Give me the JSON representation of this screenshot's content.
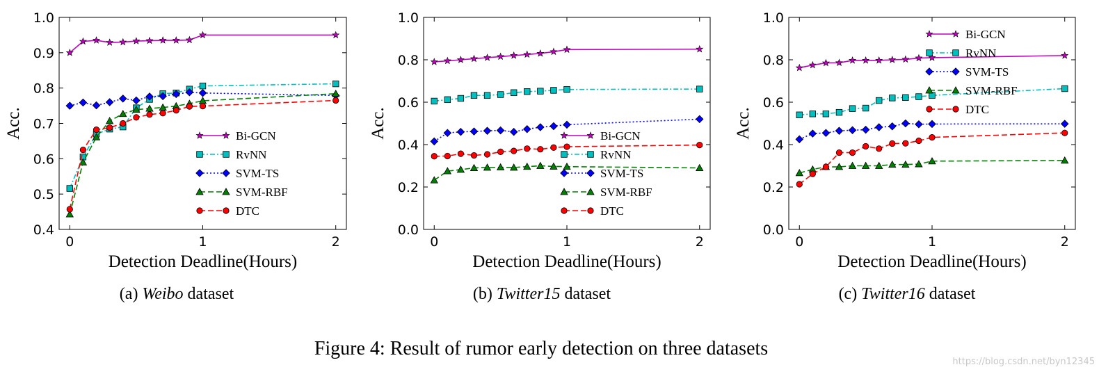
{
  "figure_caption": "Figure 4: Result of rumor early detection on three datasets",
  "watermark": "https://blog.csdn.net/byn12345",
  "series_styles": {
    "Bi-GCN": {
      "color": "#bf00bf",
      "marker": "star",
      "dash": ""
    },
    "RvNN": {
      "color": "#00bfbf",
      "marker": "square",
      "dash": "7,3,2,3"
    },
    "SVM-TS": {
      "color": "#0000ff",
      "marker": "diamond",
      "dash": "2,3"
    },
    "SVM-RBF": {
      "color": "#007f00",
      "marker": "triangle",
      "dash": "8,4"
    },
    "DTC": {
      "color": "#ff0000",
      "marker": "circle",
      "dash": "8,4"
    }
  },
  "chart_data": [
    {
      "type": "line",
      "caption_prefix": "(a)",
      "caption_name": "Weibo",
      "caption_suffix": "dataset",
      "xlabel": "Detection Deadline(Hours)",
      "ylabel": "Acc.",
      "xlim": [
        -0.08,
        2.08
      ],
      "ylim": [
        0.4,
        1.0
      ],
      "xticks": [
        0,
        1,
        2
      ],
      "yticks": [
        0.4,
        0.5,
        0.6,
        0.7,
        0.8,
        0.9,
        1.0
      ],
      "legend": "lower-right",
      "grid": false,
      "x": [
        0,
        0.1,
        0.2,
        0.3,
        0.4,
        0.5,
        0.6,
        0.7,
        0.8,
        0.9,
        1.0,
        2.0
      ],
      "series": [
        {
          "name": "Bi-GCN",
          "values": [
            0.9,
            0.932,
            0.935,
            0.929,
            0.93,
            0.933,
            0.934,
            0.935,
            0.935,
            0.936,
            0.95,
            0.95
          ]
        },
        {
          "name": "RvNN",
          "values": [
            0.516,
            0.605,
            0.67,
            0.684,
            0.69,
            0.744,
            0.768,
            0.784,
            0.786,
            0.797,
            0.806,
            0.812
          ]
        },
        {
          "name": "SVM-TS",
          "values": [
            0.75,
            0.759,
            0.751,
            0.76,
            0.77,
            0.765,
            0.776,
            0.777,
            0.783,
            0.788,
            0.786,
            0.779
          ]
        },
        {
          "name": "SVM-RBF",
          "values": [
            0.443,
            0.59,
            0.661,
            0.707,
            0.727,
            0.739,
            0.742,
            0.745,
            0.749,
            0.756,
            0.764,
            0.784
          ]
        },
        {
          "name": "DTC",
          "values": [
            0.457,
            0.625,
            0.682,
            0.688,
            0.7,
            0.717,
            0.725,
            0.729,
            0.737,
            0.748,
            0.749,
            0.765
          ]
        }
      ]
    },
    {
      "type": "line",
      "caption_prefix": "(b)",
      "caption_name": "Twitter15",
      "caption_suffix": "dataset",
      "xlabel": "Detection Deadline(Hours)",
      "ylabel": "Acc.",
      "xlim": [
        -0.08,
        2.08
      ],
      "ylim": [
        0.0,
        1.0
      ],
      "xticks": [
        0,
        1,
        2
      ],
      "yticks": [
        0.0,
        0.2,
        0.4,
        0.6,
        0.8,
        1.0
      ],
      "legend": "lower-right",
      "grid": false,
      "x": [
        0,
        0.1,
        0.2,
        0.3,
        0.4,
        0.5,
        0.6,
        0.7,
        0.8,
        0.9,
        1.0,
        2.0
      ],
      "series": [
        {
          "name": "Bi-GCN",
          "values": [
            0.79,
            0.795,
            0.8,
            0.805,
            0.81,
            0.815,
            0.82,
            0.825,
            0.83,
            0.838,
            0.848,
            0.85
          ]
        },
        {
          "name": "RvNN",
          "values": [
            0.605,
            0.612,
            0.618,
            0.632,
            0.632,
            0.636,
            0.645,
            0.65,
            0.652,
            0.656,
            0.66,
            0.662
          ]
        },
        {
          "name": "SVM-TS",
          "values": [
            0.415,
            0.455,
            0.46,
            0.462,
            0.465,
            0.467,
            0.46,
            0.473,
            0.482,
            0.487,
            0.494,
            0.52
          ]
        },
        {
          "name": "SVM-RBF",
          "values": [
            0.232,
            0.275,
            0.282,
            0.29,
            0.292,
            0.293,
            0.292,
            0.296,
            0.3,
            0.297,
            0.296,
            0.29
          ]
        },
        {
          "name": "DTC",
          "values": [
            0.345,
            0.346,
            0.357,
            0.349,
            0.354,
            0.366,
            0.37,
            0.381,
            0.378,
            0.386,
            0.39,
            0.398
          ]
        }
      ]
    },
    {
      "type": "line",
      "caption_prefix": "(c)",
      "caption_name": "Twitter16",
      "caption_suffix": "dataset",
      "xlabel": "Detection Deadline(Hours)",
      "ylabel": "Acc.",
      "xlim": [
        -0.08,
        2.08
      ],
      "ylim": [
        0.0,
        1.0
      ],
      "xticks": [
        0,
        1,
        2
      ],
      "yticks": [
        0.0,
        0.2,
        0.4,
        0.6,
        0.8,
        1.0
      ],
      "legend": "upper-right",
      "grid": false,
      "x": [
        0,
        0.1,
        0.2,
        0.3,
        0.4,
        0.5,
        0.6,
        0.7,
        0.8,
        0.9,
        1.0,
        2.0
      ],
      "series": [
        {
          "name": "Bi-GCN",
          "values": [
            0.762,
            0.775,
            0.785,
            0.786,
            0.797,
            0.797,
            0.797,
            0.8,
            0.802,
            0.808,
            0.81,
            0.82
          ]
        },
        {
          "name": "RvNN",
          "values": [
            0.54,
            0.545,
            0.545,
            0.552,
            0.57,
            0.572,
            0.608,
            0.62,
            0.622,
            0.626,
            0.632,
            0.664
          ]
        },
        {
          "name": "SVM-TS",
          "values": [
            0.425,
            0.452,
            0.455,
            0.465,
            0.468,
            0.47,
            0.482,
            0.486,
            0.5,
            0.496,
            0.497,
            0.498
          ]
        },
        {
          "name": "SVM-RBF",
          "values": [
            0.266,
            0.283,
            0.295,
            0.295,
            0.3,
            0.3,
            0.3,
            0.306,
            0.306,
            0.308,
            0.322,
            0.325
          ]
        },
        {
          "name": "DTC",
          "values": [
            0.213,
            0.262,
            0.295,
            0.362,
            0.362,
            0.392,
            0.381,
            0.405,
            0.406,
            0.418,
            0.434,
            0.455
          ]
        }
      ]
    }
  ]
}
